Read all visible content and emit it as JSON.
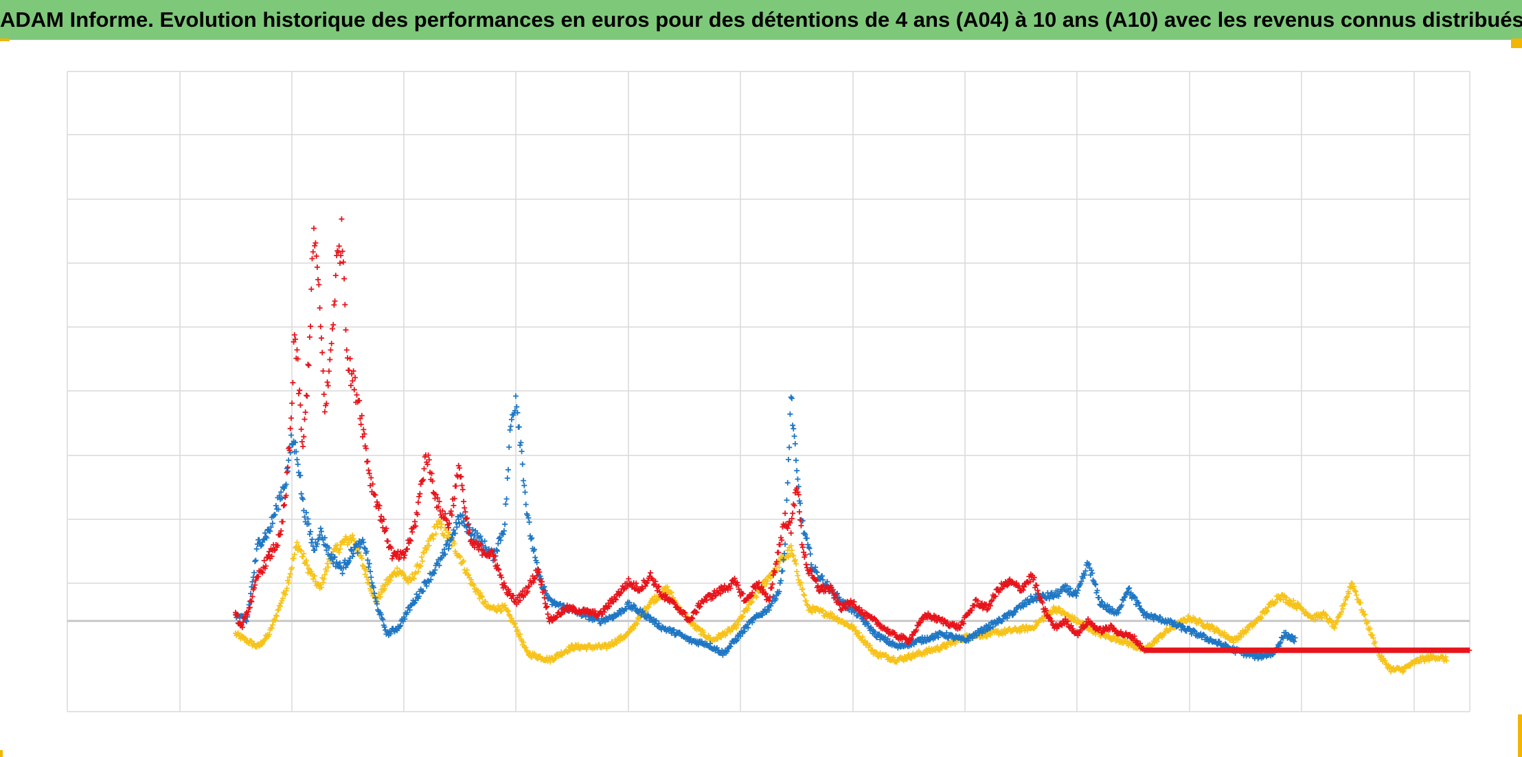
{
  "colors": {
    "header_background": "#7ec87a",
    "accent_corners": "#f2b500",
    "grid": "#d9d9d9",
    "zero_line": "#bfbfbf",
    "blue_series": "#1f77c4",
    "red_series": "#e8141b",
    "yellow_series": "#f7c31a"
  },
  "chart_data": {
    "type": "scatter",
    "title": "ADAM Informe. Evolution historique des performances en euros pour des détentions de 4 ans (A04) à 10 ans (A10) avec les revenus connus distribués",
    "xlabel": "",
    "ylabel": "",
    "xlim": [
      0,
      12.5
    ],
    "ylim": [
      -1.4,
      8.5
    ],
    "grid": true,
    "legend": "none",
    "tick_labels_visible": false,
    "marker": "plus",
    "series": [
      {
        "color": "#f7c31a",
        "anchors": [
          [
            1.5,
            -0.2
          ],
          [
            1.7,
            -0.4
          ],
          [
            1.8,
            -0.2
          ],
          [
            1.95,
            0.5
          ],
          [
            2.05,
            1.2
          ],
          [
            2.15,
            0.8
          ],
          [
            2.25,
            0.5
          ],
          [
            2.35,
            1.0
          ],
          [
            2.45,
            1.2
          ],
          [
            2.55,
            1.3
          ],
          [
            2.65,
            0.8
          ],
          [
            2.75,
            0.3
          ],
          [
            2.85,
            0.6
          ],
          [
            2.95,
            0.8
          ],
          [
            3.05,
            0.6
          ],
          [
            3.15,
            0.9
          ],
          [
            3.3,
            1.5
          ],
          [
            3.4,
            1.3
          ],
          [
            3.5,
            1.0
          ],
          [
            3.6,
            0.6
          ],
          [
            3.75,
            0.2
          ],
          [
            3.9,
            0.2
          ],
          [
            4.0,
            -0.1
          ],
          [
            4.1,
            -0.5
          ],
          [
            4.3,
            -0.6
          ],
          [
            4.5,
            -0.4
          ],
          [
            4.8,
            -0.4
          ],
          [
            5.0,
            -0.2
          ],
          [
            5.2,
            0.3
          ],
          [
            5.35,
            0.5
          ],
          [
            5.45,
            0.2
          ],
          [
            5.6,
            -0.1
          ],
          [
            5.75,
            -0.3
          ],
          [
            5.95,
            -0.1
          ],
          [
            6.1,
            0.3
          ],
          [
            6.3,
            0.8
          ],
          [
            6.45,
            1.1
          ],
          [
            6.6,
            0.2
          ],
          [
            6.8,
            0.1
          ],
          [
            7.0,
            -0.1
          ],
          [
            7.2,
            -0.5
          ],
          [
            7.4,
            -0.6
          ],
          [
            7.6,
            -0.5
          ],
          [
            7.8,
            -0.4
          ],
          [
            8.0,
            -0.25
          ],
          [
            8.2,
            -0.2
          ],
          [
            8.4,
            -0.15
          ],
          [
            8.6,
            -0.1
          ],
          [
            8.8,
            0.2
          ],
          [
            9.0,
            0.0
          ],
          [
            9.2,
            -0.2
          ],
          [
            9.4,
            -0.3
          ],
          [
            9.6,
            -0.45
          ],
          [
            9.8,
            -0.15
          ],
          [
            10.0,
            0.05
          ],
          [
            10.2,
            -0.1
          ],
          [
            10.4,
            -0.3
          ],
          [
            10.6,
            0.0
          ],
          [
            10.8,
            0.4
          ],
          [
            11.0,
            0.2
          ],
          [
            11.1,
            0.05
          ],
          [
            11.2,
            0.1
          ],
          [
            11.3,
            -0.1
          ],
          [
            11.45,
            0.6
          ],
          [
            11.6,
            -0.1
          ],
          [
            11.7,
            -0.55
          ],
          [
            11.8,
            -0.75
          ],
          [
            11.9,
            -0.75
          ],
          [
            12.05,
            -0.6
          ],
          [
            12.2,
            -0.55
          ],
          [
            12.3,
            -0.6
          ]
        ]
      },
      {
        "color": "#1f77c4",
        "anchors": [
          [
            1.5,
            0.1
          ],
          [
            1.6,
            0.0
          ],
          [
            1.7,
            1.2
          ],
          [
            1.8,
            1.4
          ],
          [
            1.95,
            2.2
          ],
          [
            2.0,
            2.8
          ],
          [
            2.05,
            2.6
          ],
          [
            2.1,
            1.8
          ],
          [
            2.2,
            1.1
          ],
          [
            2.25,
            1.4
          ],
          [
            2.35,
            1.0
          ],
          [
            2.45,
            0.8
          ],
          [
            2.55,
            1.1
          ],
          [
            2.65,
            1.2
          ],
          [
            2.75,
            0.3
          ],
          [
            2.85,
            -0.2
          ],
          [
            2.95,
            -0.1
          ],
          [
            3.05,
            0.2
          ],
          [
            3.2,
            0.6
          ],
          [
            3.35,
            1.0
          ],
          [
            3.5,
            1.6
          ],
          [
            3.6,
            1.4
          ],
          [
            3.7,
            1.2
          ],
          [
            3.8,
            1.0
          ],
          [
            3.9,
            1.5
          ],
          [
            3.95,
            3.0
          ],
          [
            4.0,
            3.5
          ],
          [
            4.05,
            2.6
          ],
          [
            4.1,
            1.6
          ],
          [
            4.2,
            0.7
          ],
          [
            4.3,
            0.3
          ],
          [
            4.45,
            0.2
          ],
          [
            4.6,
            0.1
          ],
          [
            4.75,
            0.0
          ],
          [
            4.9,
            0.1
          ],
          [
            5.0,
            0.25
          ],
          [
            5.15,
            0.1
          ],
          [
            5.3,
            -0.1
          ],
          [
            5.45,
            -0.2
          ],
          [
            5.55,
            -0.3
          ],
          [
            5.7,
            -0.35
          ],
          [
            5.85,
            -0.5
          ],
          [
            6.0,
            -0.2
          ],
          [
            6.1,
            0.0
          ],
          [
            6.25,
            0.2
          ],
          [
            6.35,
            0.5
          ],
          [
            6.4,
            1.2
          ],
          [
            6.45,
            3.5
          ],
          [
            6.5,
            2.3
          ],
          [
            6.55,
            1.5
          ],
          [
            6.65,
            0.8
          ],
          [
            6.8,
            0.5
          ],
          [
            6.9,
            0.3
          ],
          [
            7.05,
            0.1
          ],
          [
            7.2,
            -0.2
          ],
          [
            7.4,
            -0.4
          ],
          [
            7.6,
            -0.3
          ],
          [
            7.8,
            -0.2
          ],
          [
            8.0,
            -0.3
          ],
          [
            8.2,
            -0.1
          ],
          [
            8.4,
            0.1
          ],
          [
            8.6,
            0.35
          ],
          [
            8.8,
            0.4
          ],
          [
            8.9,
            0.5
          ],
          [
            9.0,
            0.4
          ],
          [
            9.1,
            0.9
          ],
          [
            9.2,
            0.3
          ],
          [
            9.35,
            0.1
          ],
          [
            9.45,
            0.5
          ],
          [
            9.6,
            0.1
          ],
          [
            9.8,
            0.0
          ],
          [
            10.0,
            -0.15
          ],
          [
            10.2,
            -0.3
          ],
          [
            10.4,
            -0.45
          ],
          [
            10.6,
            -0.55
          ],
          [
            10.75,
            -0.5
          ],
          [
            10.85,
            -0.2
          ],
          [
            10.95,
            -0.3
          ]
        ]
      },
      {
        "color": "#e8141b",
        "anchors": [
          [
            1.5,
            0.1
          ],
          [
            1.55,
            -0.1
          ],
          [
            1.62,
            0.2
          ],
          [
            1.7,
            0.7
          ],
          [
            1.8,
            1.0
          ],
          [
            1.9,
            1.3
          ],
          [
            1.95,
            2.0
          ],
          [
            2.0,
            3.2
          ],
          [
            2.02,
            4.5
          ],
          [
            2.05,
            4.0
          ],
          [
            2.1,
            2.6
          ],
          [
            2.15,
            4.0
          ],
          [
            2.2,
            6.1
          ],
          [
            2.25,
            4.8
          ],
          [
            2.3,
            3.2
          ],
          [
            2.35,
            4.2
          ],
          [
            2.4,
            5.5
          ],
          [
            2.45,
            6.0
          ],
          [
            2.5,
            4.0
          ],
          [
            2.6,
            3.4
          ],
          [
            2.7,
            2.2
          ],
          [
            2.8,
            1.6
          ],
          [
            2.9,
            1.0
          ],
          [
            3.0,
            1.0
          ],
          [
            3.1,
            1.5
          ],
          [
            3.2,
            2.6
          ],
          [
            3.3,
            1.8
          ],
          [
            3.4,
            1.5
          ],
          [
            3.5,
            2.4
          ],
          [
            3.55,
            1.6
          ],
          [
            3.6,
            1.2
          ],
          [
            3.7,
            1.1
          ],
          [
            3.8,
            1.0
          ],
          [
            3.9,
            0.5
          ],
          [
            4.0,
            0.3
          ],
          [
            4.1,
            0.5
          ],
          [
            4.2,
            0.8
          ],
          [
            4.3,
            0.0
          ],
          [
            4.45,
            0.2
          ],
          [
            4.6,
            0.15
          ],
          [
            4.75,
            0.1
          ],
          [
            4.9,
            0.4
          ],
          [
            5.0,
            0.6
          ],
          [
            5.1,
            0.5
          ],
          [
            5.2,
            0.7
          ],
          [
            5.3,
            0.4
          ],
          [
            5.45,
            0.2
          ],
          [
            5.55,
            0.0
          ],
          [
            5.65,
            0.3
          ],
          [
            5.75,
            0.4
          ],
          [
            5.85,
            0.5
          ],
          [
            5.95,
            0.6
          ],
          [
            6.05,
            0.3
          ],
          [
            6.15,
            0.6
          ],
          [
            6.25,
            0.3
          ],
          [
            6.35,
            1.2
          ],
          [
            6.4,
            1.6
          ],
          [
            6.45,
            1.4
          ],
          [
            6.5,
            2.2
          ],
          [
            6.55,
            1.2
          ],
          [
            6.6,
            0.8
          ],
          [
            6.7,
            0.5
          ],
          [
            6.8,
            0.5
          ],
          [
            6.9,
            0.2
          ],
          [
            7.0,
            0.3
          ],
          [
            7.1,
            0.1
          ],
          [
            7.2,
            0.0
          ],
          [
            7.35,
            -0.2
          ],
          [
            7.5,
            -0.3
          ],
          [
            7.65,
            0.1
          ],
          [
            7.8,
            0.0
          ],
          [
            7.95,
            -0.1
          ],
          [
            8.1,
            0.3
          ],
          [
            8.2,
            0.2
          ],
          [
            8.3,
            0.5
          ],
          [
            8.4,
            0.6
          ],
          [
            8.5,
            0.5
          ],
          [
            8.6,
            0.7
          ],
          [
            8.7,
            0.2
          ],
          [
            8.8,
            -0.1
          ],
          [
            8.9,
            0.0
          ],
          [
            9.0,
            -0.2
          ],
          [
            9.1,
            0.0
          ],
          [
            9.2,
            -0.15
          ],
          [
            9.3,
            -0.1
          ],
          [
            9.4,
            -0.2
          ],
          [
            9.5,
            -0.25
          ],
          [
            9.6,
            -0.45
          ],
          [
            12.5,
            -0.45
          ]
        ]
      }
    ]
  }
}
